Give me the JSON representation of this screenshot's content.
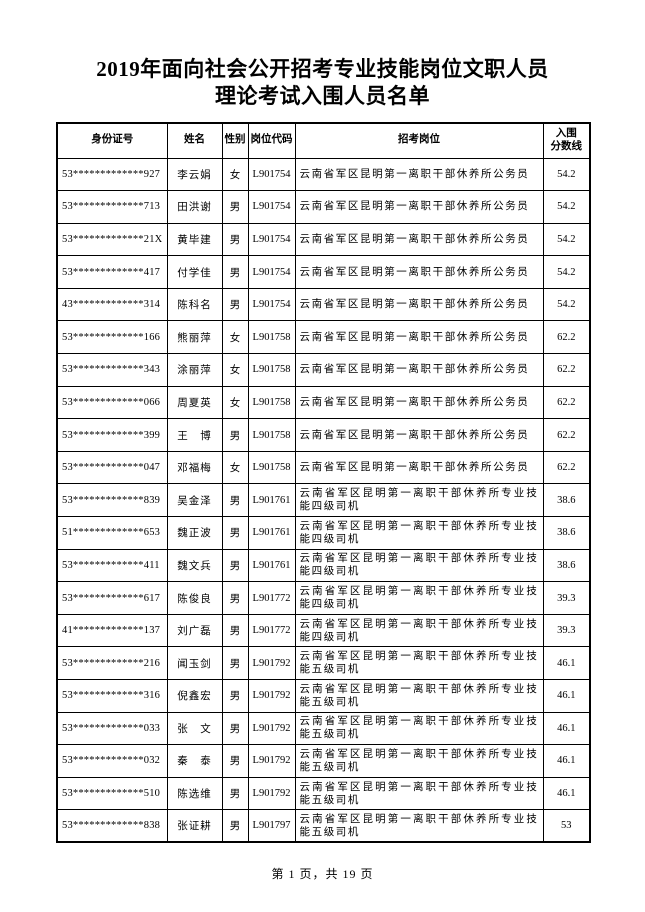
{
  "doc": {
    "title_line1": "2019年面向社会公开招考专业技能岗位文职人员",
    "title_line2": "理论考试入围人员名单",
    "footer": "第 1 页，共 19 页"
  },
  "table": {
    "headers": {
      "id": "身份证号",
      "name": "姓名",
      "gender": "性别",
      "code": "岗位代码",
      "position": "招考岗位",
      "score_line1": "入围",
      "score_line2": "分数线"
    },
    "rows": [
      {
        "id": "53*************927",
        "name": "李云娟",
        "gender": "女",
        "code": "L901754",
        "position": "云南省军区昆明第一离职干部休养所公务员",
        "score": "54.2"
      },
      {
        "id": "53*************713",
        "name": "田洪谢",
        "gender": "男",
        "code": "L901754",
        "position": "云南省军区昆明第一离职干部休养所公务员",
        "score": "54.2"
      },
      {
        "id": "53*************21X",
        "name": "黄毕建",
        "gender": "男",
        "code": "L901754",
        "position": "云南省军区昆明第一离职干部休养所公务员",
        "score": "54.2"
      },
      {
        "id": "53*************417",
        "name": "付学佳",
        "gender": "男",
        "code": "L901754",
        "position": "云南省军区昆明第一离职干部休养所公务员",
        "score": "54.2"
      },
      {
        "id": "43*************314",
        "name": "陈科名",
        "gender": "男",
        "code": "L901754",
        "position": "云南省军区昆明第一离职干部休养所公务员",
        "score": "54.2"
      },
      {
        "id": "53*************166",
        "name": "熊丽萍",
        "gender": "女",
        "code": "L901758",
        "position": "云南省军区昆明第一离职干部休养所公务员",
        "score": "62.2"
      },
      {
        "id": "53*************343",
        "name": "涂丽萍",
        "gender": "女",
        "code": "L901758",
        "position": "云南省军区昆明第一离职干部休养所公务员",
        "score": "62.2"
      },
      {
        "id": "53*************066",
        "name": "周夏英",
        "gender": "女",
        "code": "L901758",
        "position": "云南省军区昆明第一离职干部休养所公务员",
        "score": "62.2"
      },
      {
        "id": "53*************399",
        "name": "王　博",
        "gender": "男",
        "code": "L901758",
        "position": "云南省军区昆明第一离职干部休养所公务员",
        "score": "62.2"
      },
      {
        "id": "53*************047",
        "name": "邓福梅",
        "gender": "女",
        "code": "L901758",
        "position": "云南省军区昆明第一离职干部休养所公务员",
        "score": "62.2"
      },
      {
        "id": "53*************839",
        "name": "吴金泽",
        "gender": "男",
        "code": "L901761",
        "position": "云南省军区昆明第一离职干部休养所专业技能四级司机",
        "score": "38.6"
      },
      {
        "id": "51*************653",
        "name": "魏正波",
        "gender": "男",
        "code": "L901761",
        "position": "云南省军区昆明第一离职干部休养所专业技能四级司机",
        "score": "38.6"
      },
      {
        "id": "53*************411",
        "name": "魏文兵",
        "gender": "男",
        "code": "L901761",
        "position": "云南省军区昆明第一离职干部休养所专业技能四级司机",
        "score": "38.6"
      },
      {
        "id": "53*************617",
        "name": "陈俊良",
        "gender": "男",
        "code": "L901772",
        "position": "云南省军区昆明第一离职干部休养所专业技能四级司机",
        "score": "39.3"
      },
      {
        "id": "41*************137",
        "name": "刘广磊",
        "gender": "男",
        "code": "L901772",
        "position": "云南省军区昆明第一离职干部休养所专业技能四级司机",
        "score": "39.3"
      },
      {
        "id": "53*************216",
        "name": "闻玉剑",
        "gender": "男",
        "code": "L901792",
        "position": "云南省军区昆明第一离职干部休养所专业技能五级司机",
        "score": "46.1"
      },
      {
        "id": "53*************316",
        "name": "倪鑫宏",
        "gender": "男",
        "code": "L901792",
        "position": "云南省军区昆明第一离职干部休养所专业技能五级司机",
        "score": "46.1"
      },
      {
        "id": "53*************033",
        "name": "张　文",
        "gender": "男",
        "code": "L901792",
        "position": "云南省军区昆明第一离职干部休养所专业技能五级司机",
        "score": "46.1"
      },
      {
        "id": "53*************032",
        "name": "秦　泰",
        "gender": "男",
        "code": "L901792",
        "position": "云南省军区昆明第一离职干部休养所专业技能五级司机",
        "score": "46.1"
      },
      {
        "id": "53*************510",
        "name": "陈选维",
        "gender": "男",
        "code": "L901792",
        "position": "云南省军区昆明第一离职干部休养所专业技能五级司机",
        "score": "46.1"
      },
      {
        "id": "53*************838",
        "name": "张证耕",
        "gender": "男",
        "code": "L901797",
        "position": "云南省军区昆明第一离职干部休养所专业技能五级司机",
        "score": "53"
      }
    ]
  }
}
